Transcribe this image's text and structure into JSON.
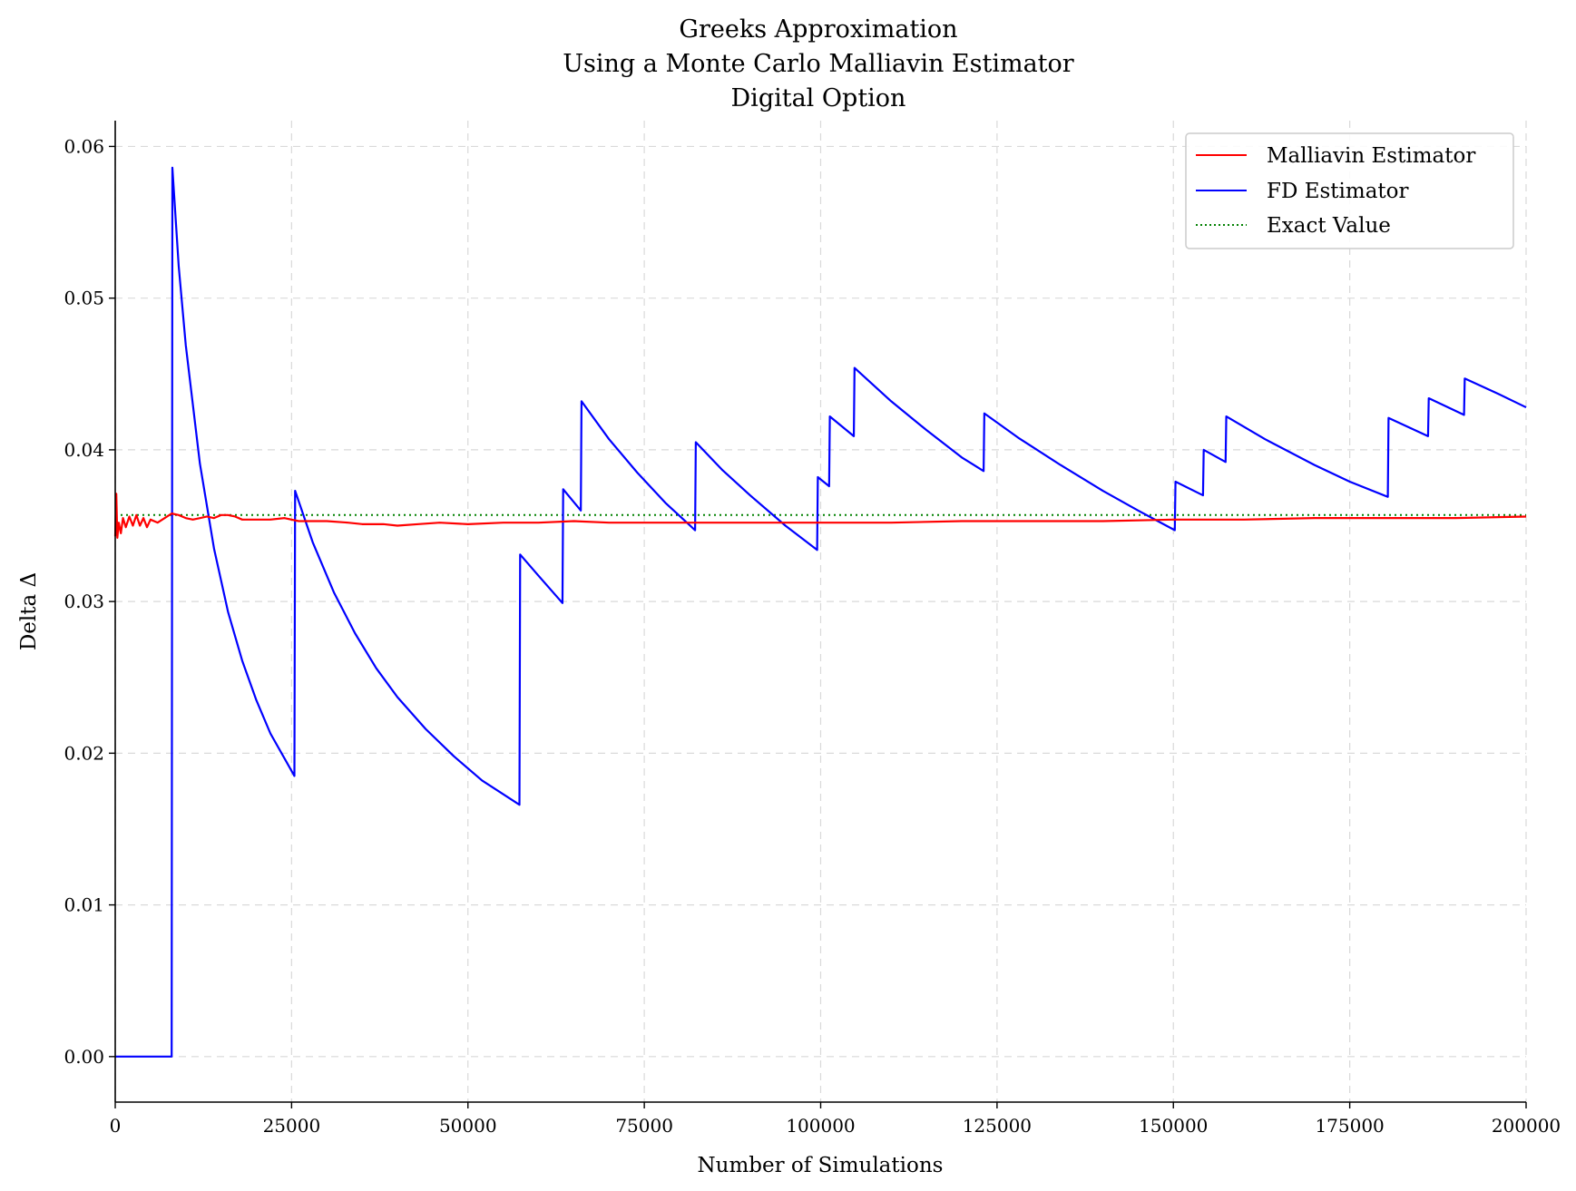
{
  "chart_data": {
    "type": "line",
    "title_lines": [
      "Greeks Approximation",
      "Using a Monte Carlo Malliavin Estimator",
      "Digital Option"
    ],
    "xlabel": "Number of Simulations",
    "ylabel": "Delta Δ",
    "xlim": [
      0,
      200000
    ],
    "ylim": [
      -0.003,
      0.0617
    ],
    "x_ticks": [
      0,
      25000,
      50000,
      75000,
      100000,
      125000,
      150000,
      175000,
      200000
    ],
    "x_tick_labels": [
      "0",
      "25000",
      "50000",
      "75000",
      "100000",
      "125000",
      "150000",
      "175000",
      "200000"
    ],
    "y_ticks": [
      0.0,
      0.01,
      0.02,
      0.03,
      0.04,
      0.05,
      0.06
    ],
    "y_tick_labels": [
      "0.00",
      "0.01",
      "0.02",
      "0.03",
      "0.04",
      "0.05",
      "0.06"
    ],
    "grid": true,
    "legend_position": "top-right",
    "series": [
      {
        "name": "Malliavin Estimator",
        "color": "#ff0000",
        "style": "solid",
        "points": [
          [
            0,
            0.0343
          ],
          [
            150,
            0.0371
          ],
          [
            300,
            0.0342
          ],
          [
            500,
            0.0352
          ],
          [
            800,
            0.0345
          ],
          [
            1100,
            0.0355
          ],
          [
            1500,
            0.0349
          ],
          [
            2000,
            0.0356
          ],
          [
            2500,
            0.035
          ],
          [
            3000,
            0.0357
          ],
          [
            3500,
            0.035
          ],
          [
            4000,
            0.0355
          ],
          [
            4500,
            0.0349
          ],
          [
            5000,
            0.0354
          ],
          [
            6000,
            0.0352
          ],
          [
            7000,
            0.0355
          ],
          [
            8000,
            0.0358
          ],
          [
            9000,
            0.0357
          ],
          [
            10000,
            0.0355
          ],
          [
            11000,
            0.0354
          ],
          [
            12000,
            0.0355
          ],
          [
            13000,
            0.0356
          ],
          [
            14000,
            0.0355
          ],
          [
            15000,
            0.0357
          ],
          [
            16000,
            0.0357
          ],
          [
            17000,
            0.0356
          ],
          [
            18000,
            0.0354
          ],
          [
            20000,
            0.0354
          ],
          [
            22000,
            0.0354
          ],
          [
            24000,
            0.0355
          ],
          [
            26000,
            0.0353
          ],
          [
            30000,
            0.0353
          ],
          [
            33000,
            0.0352
          ],
          [
            35000,
            0.0351
          ],
          [
            38000,
            0.0351
          ],
          [
            40000,
            0.035
          ],
          [
            43000,
            0.0351
          ],
          [
            46000,
            0.0352
          ],
          [
            50000,
            0.0351
          ],
          [
            55000,
            0.0352
          ],
          [
            60000,
            0.0352
          ],
          [
            65000,
            0.0353
          ],
          [
            70000,
            0.0352
          ],
          [
            80000,
            0.0352
          ],
          [
            90000,
            0.0352
          ],
          [
            100000,
            0.0352
          ],
          [
            110000,
            0.0352
          ],
          [
            120000,
            0.0353
          ],
          [
            130000,
            0.0353
          ],
          [
            140000,
            0.0353
          ],
          [
            150000,
            0.0354
          ],
          [
            160000,
            0.0354
          ],
          [
            170000,
            0.0355
          ],
          [
            180000,
            0.0355
          ],
          [
            190000,
            0.0355
          ],
          [
            200000,
            0.0356
          ]
        ]
      },
      {
        "name": "FD Estimator",
        "color": "#0000ff",
        "style": "solid",
        "points": [
          [
            0,
            0.0
          ],
          [
            8000,
            0.0
          ],
          [
            8100,
            0.0586
          ],
          [
            9000,
            0.0521
          ],
          [
            10000,
            0.0469
          ],
          [
            12000,
            0.0391
          ],
          [
            14000,
            0.0335
          ],
          [
            16000,
            0.0293
          ],
          [
            18000,
            0.0261
          ],
          [
            20000,
            0.0235
          ],
          [
            22000,
            0.0213
          ],
          [
            25400,
            0.0185
          ],
          [
            25500,
            0.0373
          ],
          [
            28000,
            0.0339
          ],
          [
            31000,
            0.0306
          ],
          [
            34000,
            0.0279
          ],
          [
            37000,
            0.0256
          ],
          [
            40000,
            0.0237
          ],
          [
            44000,
            0.0216
          ],
          [
            48000,
            0.0198
          ],
          [
            52000,
            0.0182
          ],
          [
            55000,
            0.0173
          ],
          [
            57300,
            0.0166
          ],
          [
            57400,
            0.0331
          ],
          [
            60000,
            0.0317
          ],
          [
            63400,
            0.0299
          ],
          [
            63500,
            0.0374
          ],
          [
            66000,
            0.036
          ],
          [
            66100,
            0.0432
          ],
          [
            70000,
            0.0407
          ],
          [
            74000,
            0.0385
          ],
          [
            78000,
            0.0365
          ],
          [
            82200,
            0.0347
          ],
          [
            82300,
            0.0405
          ],
          [
            86000,
            0.0387
          ],
          [
            90000,
            0.037
          ],
          [
            95000,
            0.035
          ],
          [
            99500,
            0.0334
          ],
          [
            99600,
            0.0382
          ],
          [
            101200,
            0.0376
          ],
          [
            101300,
            0.0422
          ],
          [
            104700,
            0.0409
          ],
          [
            104800,
            0.0454
          ],
          [
            110000,
            0.0432
          ],
          [
            115000,
            0.0413
          ],
          [
            120000,
            0.0395
          ],
          [
            123100,
            0.0386
          ],
          [
            123200,
            0.0424
          ],
          [
            128000,
            0.0408
          ],
          [
            134000,
            0.039
          ],
          [
            140000,
            0.0373
          ],
          [
            145000,
            0.036
          ],
          [
            150200,
            0.0347
          ],
          [
            150300,
            0.0379
          ],
          [
            154200,
            0.037
          ],
          [
            154300,
            0.04
          ],
          [
            157400,
            0.0392
          ],
          [
            157500,
            0.0422
          ],
          [
            163000,
            0.0407
          ],
          [
            170000,
            0.039
          ],
          [
            175000,
            0.0379
          ],
          [
            180400,
            0.0369
          ],
          [
            180500,
            0.0421
          ],
          [
            186100,
            0.0409
          ],
          [
            186200,
            0.0434
          ],
          [
            191200,
            0.0423
          ],
          [
            191300,
            0.0447
          ],
          [
            196000,
            0.0437
          ],
          [
            200000,
            0.0428
          ]
        ]
      },
      {
        "name": "Exact Value",
        "color": "#008000",
        "style": "dotted",
        "points": [
          [
            0,
            0.0357
          ],
          [
            200000,
            0.0357
          ]
        ]
      }
    ]
  }
}
